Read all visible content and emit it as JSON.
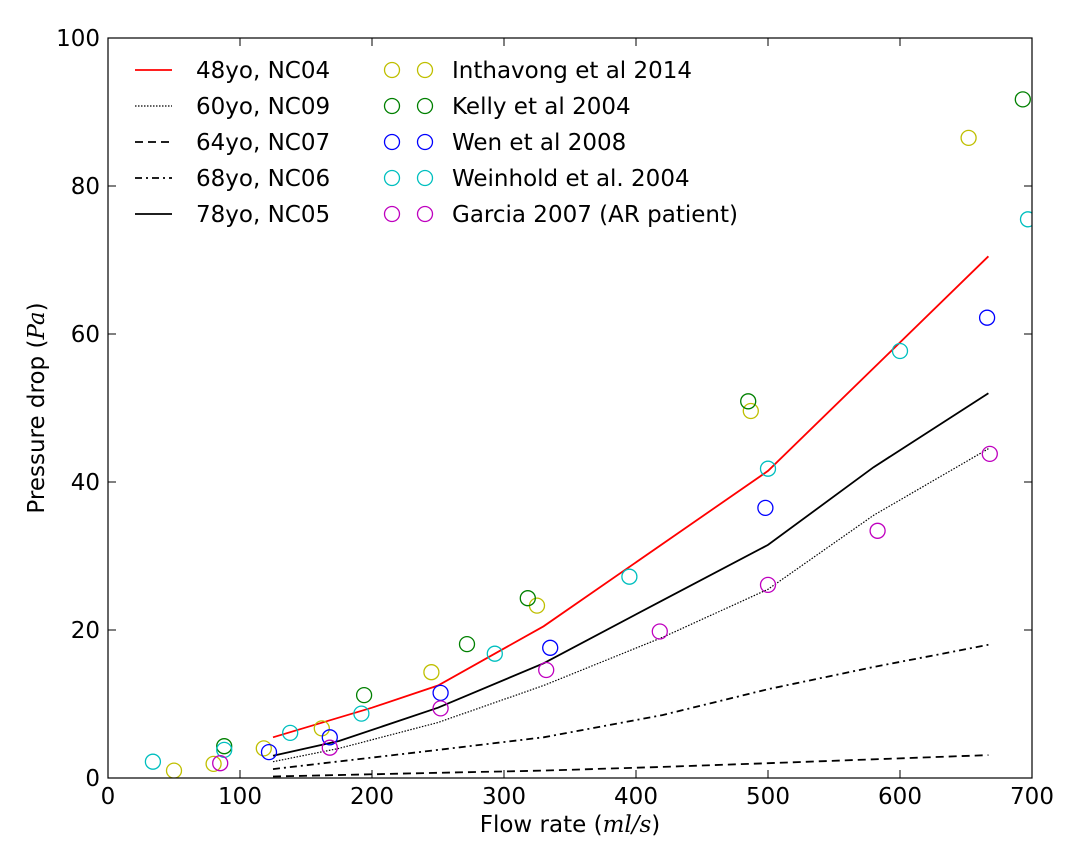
{
  "chart_data": {
    "type": "line",
    "xlabel": "Flow rate",
    "xlabel_unit": "ml/s",
    "ylabel": "Pressure drop",
    "ylabel_unit": "Pa",
    "xlim": [
      0,
      700
    ],
    "ylim": [
      0,
      100
    ],
    "xticks": [
      0,
      100,
      200,
      300,
      400,
      500,
      600,
      700
    ],
    "yticks": [
      0,
      20,
      40,
      60,
      80,
      100
    ],
    "grid": false,
    "legend_placement": "top-left",
    "lines": [
      {
        "name": "48yo, NC04",
        "color": "#ff0000",
        "dash": "solid",
        "x": [
          125,
          200,
          250,
          330,
          500,
          667
        ],
        "y": [
          5.5,
          9.5,
          12.5,
          20.5,
          41.5,
          70.5
        ]
      },
      {
        "name": "60yo, NC09",
        "color": "#000000",
        "dash": "dotted",
        "x": [
          125,
          175,
          250,
          330,
          420,
          500,
          580,
          667
        ],
        "y": [
          2.2,
          4.0,
          7.5,
          12.5,
          19.0,
          25.5,
          35.5,
          44.5
        ]
      },
      {
        "name": "64yo, NC07",
        "color": "#000000",
        "dash": "dashed",
        "x": [
          125,
          250,
          330,
          420,
          500,
          667
        ],
        "y": [
          0.2,
          0.7,
          1.0,
          1.5,
          2.0,
          3.1
        ]
      },
      {
        "name": "68yo, NC06",
        "color": "#000000",
        "dash": "dashdot",
        "x": [
          125,
          250,
          330,
          420,
          500,
          580,
          667
        ],
        "y": [
          1.2,
          3.8,
          5.5,
          8.5,
          12.0,
          15.0,
          18.0
        ]
      },
      {
        "name": "78yo, NC05",
        "color": "#000000",
        "dash": "solid",
        "x": [
          125,
          175,
          250,
          330,
          420,
          500,
          580,
          667
        ],
        "y": [
          3.0,
          5.0,
          9.5,
          15.5,
          24.0,
          31.5,
          42.0,
          52.0
        ]
      }
    ],
    "scatter": [
      {
        "name": "Inthavong et al 2014",
        "color": "#bfbf00",
        "x": [
          50,
          80,
          118,
          162,
          245,
          325,
          487,
          652
        ],
        "y": [
          1.0,
          1.9,
          4.0,
          6.7,
          14.3,
          23.3,
          49.6,
          86.5
        ]
      },
      {
        "name": "Kelly et al 2004",
        "color": "#008000",
        "x": [
          88,
          194,
          272,
          318,
          485,
          693
        ],
        "y": [
          4.3,
          11.2,
          18.1,
          24.3,
          50.9,
          91.7
        ]
      },
      {
        "name": "Wen et al 2008",
        "color": "#0000ff",
        "x": [
          122,
          168,
          252,
          335,
          498,
          666
        ],
        "y": [
          3.5,
          5.5,
          11.5,
          17.6,
          36.5,
          62.2
        ]
      },
      {
        "name": "Weinhold et al. 2004",
        "color": "#00bfbf",
        "x": [
          34,
          88,
          138,
          192,
          293,
          395,
          500,
          600,
          697
        ],
        "y": [
          2.2,
          3.8,
          6.1,
          8.7,
          16.8,
          27.2,
          41.8,
          57.7,
          75.5
        ]
      },
      {
        "name": "Garcia 2007 (AR patient)",
        "color": "#bf00bf",
        "x": [
          85,
          168,
          252,
          332,
          418,
          500,
          583,
          668
        ],
        "y": [
          2.0,
          4.1,
          9.4,
          14.6,
          19.8,
          26.1,
          33.4,
          43.8
        ]
      }
    ]
  }
}
